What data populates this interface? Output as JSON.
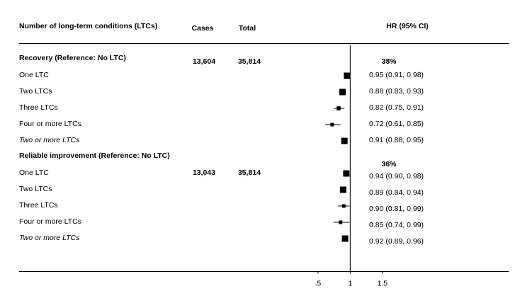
{
  "chart_data": {
    "type": "forest",
    "columns": {
      "label": "Number of long-term conditions (LTCs)",
      "cases": "Cases",
      "total": "Total",
      "estimate": "HR (95% CI)"
    },
    "groups": [
      {
        "title": "Recovery (Reference: No LTC)",
        "cases": "13,604",
        "total": "35,814",
        "annotation": "38%",
        "rows": [
          {
            "label": "One LTC",
            "value": 0.95,
            "lower": 0.91,
            "upper": 0.98,
            "value_label": "0.95 (0.91, 0.98)",
            "italic": false
          },
          {
            "label": "Two LTCs",
            "value": 0.88,
            "lower": 0.83,
            "upper": 0.93,
            "value_label": "0.88 (0.83, 0.93)",
            "italic": false
          },
          {
            "label": "Three LTCs",
            "value": 0.82,
            "lower": 0.75,
            "upper": 0.91,
            "value_label": "0.82 (0.75, 0.91)",
            "italic": false
          },
          {
            "label": "Four or more LTCs",
            "value": 0.72,
            "lower": 0.61,
            "upper": 0.85,
            "value_label": "0.72 (0.61, 0.85)",
            "italic": false
          },
          {
            "label": "Two or more LTCs",
            "value": 0.91,
            "lower": 0.88,
            "upper": 0.95,
            "value_label": "0.91 (0.88, 0.95)",
            "italic": true
          }
        ]
      },
      {
        "title": "Reliable improvement (Reference: No LTC)",
        "cases": "13,043",
        "total": "35,814",
        "annotation": "36%",
        "rows": [
          {
            "label": "One LTC",
            "value": 0.94,
            "lower": 0.9,
            "upper": 0.98,
            "value_label": "0.94 (0.90, 0.98)",
            "italic": false
          },
          {
            "label": "Two LTCs",
            "value": 0.89,
            "lower": 0.84,
            "upper": 0.94,
            "value_label": "0.89 (0.84, 0.94)",
            "italic": false
          },
          {
            "label": "Three LTCs",
            "value": 0.9,
            "lower": 0.81,
            "upper": 0.99,
            "value_label": "0.90 (0.81, 0.99)",
            "italic": false
          },
          {
            "label": "Four or more LTCs",
            "value": 0.85,
            "lower": 0.74,
            "upper": 0.99,
            "value_label": "0.85 (0.74, 0.99)",
            "italic": false
          },
          {
            "label": "Two or more LTCs",
            "value": 0.92,
            "lower": 0.89,
            "upper": 0.96,
            "value_label": "0.92 (0.89, 0.96)",
            "italic": true
          }
        ]
      }
    ],
    "xlim": [
      -4.14,
      3.46
    ],
    "xticks": [
      {
        "value": 0.5,
        "label": ".5"
      },
      1,
      1.5
    ],
    "reference_line": 1,
    "color": "#000000"
  }
}
